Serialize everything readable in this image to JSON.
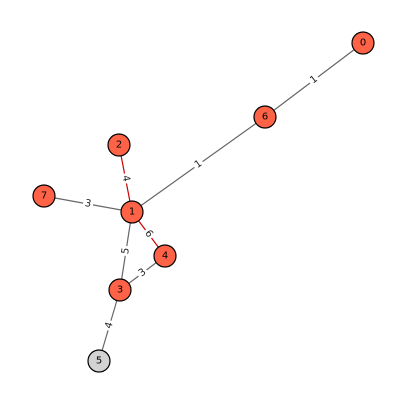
{
  "graph": {
    "colors": {
      "node_default": "#ff6347",
      "node_highlight": "#d3d3d3",
      "edge_default": "#666666",
      "edge_highlight": "#cc0000"
    },
    "nodes": [
      {
        "id": "0",
        "label": "0",
        "highlight": false
      },
      {
        "id": "1",
        "label": "1",
        "highlight": false
      },
      {
        "id": "2",
        "label": "2",
        "highlight": false
      },
      {
        "id": "3",
        "label": "3",
        "highlight": false
      },
      {
        "id": "4",
        "label": "4",
        "highlight": false
      },
      {
        "id": "5",
        "label": "5",
        "highlight": true
      },
      {
        "id": "6",
        "label": "6",
        "highlight": false
      },
      {
        "id": "7",
        "label": "7",
        "highlight": false
      }
    ],
    "edges": [
      {
        "source": "0",
        "target": "6",
        "weight": "1",
        "highlight": false
      },
      {
        "source": "6",
        "target": "1",
        "weight": "1",
        "highlight": false
      },
      {
        "source": "2",
        "target": "1",
        "weight": "4",
        "highlight": true
      },
      {
        "source": "7",
        "target": "1",
        "weight": "3",
        "highlight": false
      },
      {
        "source": "1",
        "target": "4",
        "weight": "6",
        "highlight": true
      },
      {
        "source": "1",
        "target": "3",
        "weight": "5",
        "highlight": false
      },
      {
        "source": "4",
        "target": "3",
        "weight": "3",
        "highlight": false
      },
      {
        "source": "3",
        "target": "5",
        "weight": "4",
        "highlight": false
      }
    ]
  }
}
